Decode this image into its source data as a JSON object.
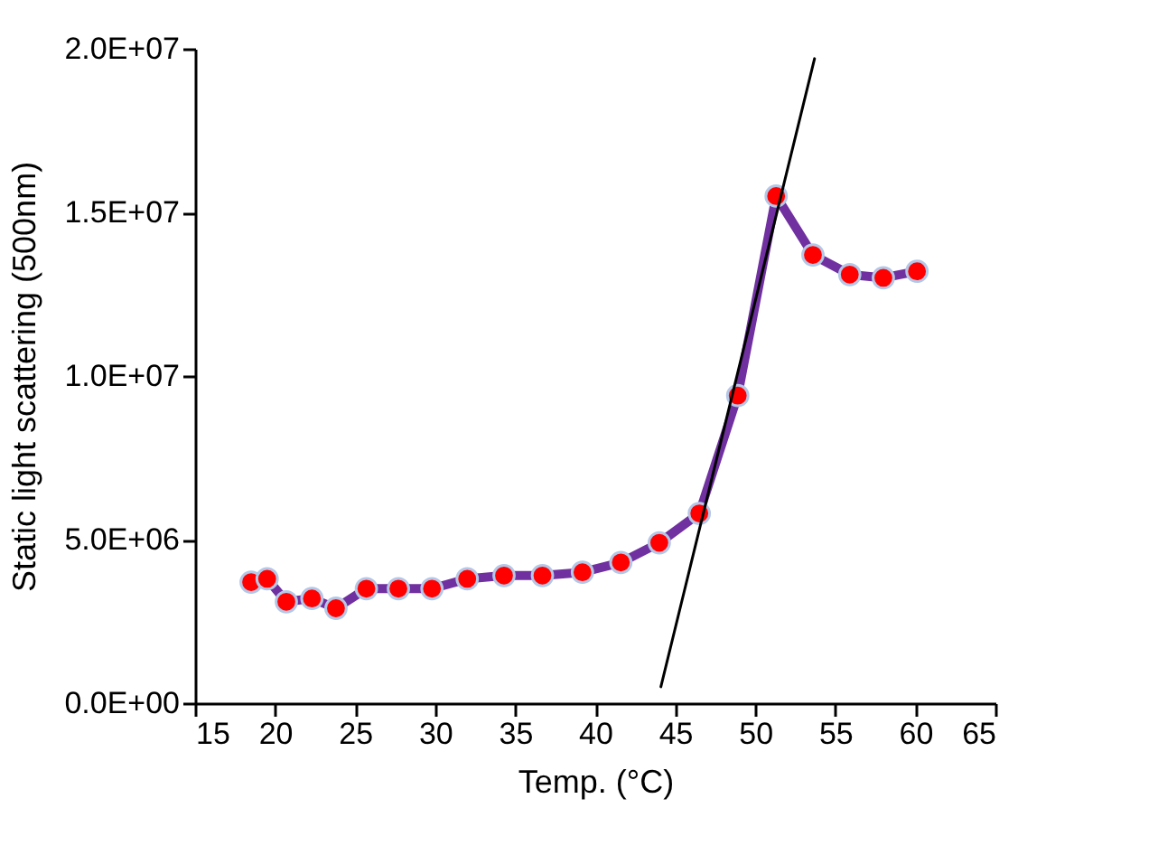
{
  "chart_data": {
    "type": "line",
    "xlabel": "Temp. (°C)",
    "ylabel": "Static light scattering (500nm)",
    "xlim": [
      15,
      65
    ],
    "xticks": [
      15,
      20,
      25,
      30,
      35,
      40,
      45,
      50,
      55,
      60,
      65
    ],
    "ylim": [
      0,
      20000000
    ],
    "yticks": [
      {
        "value": 0,
        "label": "0.0E+00"
      },
      {
        "value": 5000000,
        "label": "5.0E+06"
      },
      {
        "value": 10000000,
        "label": "1.0E+07"
      },
      {
        "value": 15000000,
        "label": "1.5E+07"
      },
      {
        "value": 20000000,
        "label": "2.0E+07"
      }
    ],
    "marker": "circle",
    "line_style": "solid",
    "series": [
      {
        "color": "#7030a0",
        "colors": [
          "#ff0000",
          "#ff0000",
          "#ff0000",
          "#ff0000",
          "#ff0000",
          "#ff0000",
          "#ff0000",
          "#ff0000",
          "#ff0000",
          "#ff0000",
          "#ff0000",
          "#ff0000",
          "#ff0000",
          "#ff0000",
          "#ff0000",
          "#ff0000",
          "#ff0000",
          "#ff0000",
          "#ff0000",
          "#ff0000",
          "#ff0000"
        ],
        "x": [
          18.5,
          19.5,
          20.7,
          22.3,
          23.8,
          25.7,
          27.7,
          29.8,
          32.0,
          34.3,
          36.7,
          39.2,
          41.6,
          44.0,
          46.5,
          48.9,
          51.3,
          53.6,
          55.9,
          58.0,
          60.1
        ],
        "values": [
          3700000,
          3800000,
          3100000,
          3200000,
          2900000,
          3500000,
          3500000,
          3500000,
          3800000,
          3900000,
          3900000,
          4000000,
          4300000,
          4900000,
          5800000,
          9400000,
          15500000,
          13700000,
          13100000,
          13000000,
          13200000
        ]
      },
      {
        "color": "#000000",
        "marker": "none",
        "x": [
          44.1,
          53.7
        ],
        "values": [
          500000,
          19700000
        ]
      }
    ]
  }
}
